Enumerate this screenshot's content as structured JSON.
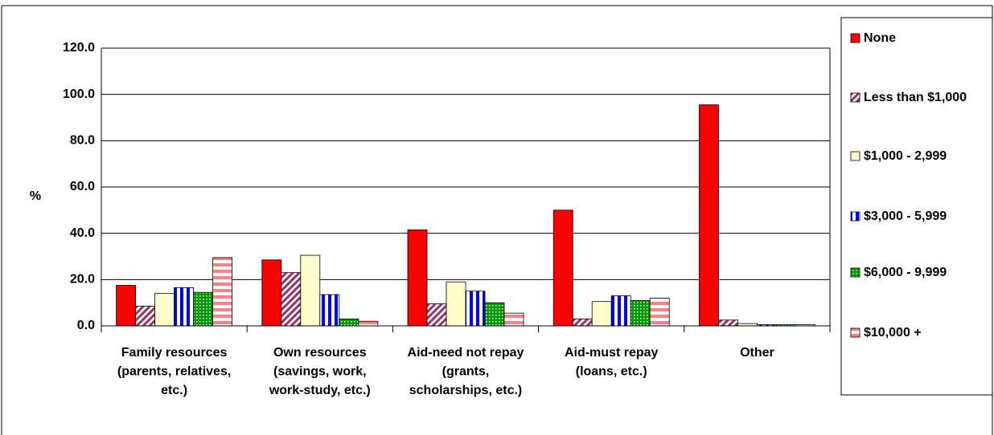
{
  "chart_data": {
    "type": "bar",
    "y_label": "%",
    "categories": [
      "Family resources (parents, relatives, etc.)",
      "Own resources (savings, work, work-study, etc.)",
      "Aid-need not repay (grants, scholarships, etc.)",
      "Aid-must repay (loans, etc.)",
      "Other"
    ],
    "series": [
      {
        "name": "None",
        "color": "#ff0000",
        "pattern": "solid",
        "values": [
          17.5,
          28.5,
          41.5,
          50,
          95.5
        ]
      },
      {
        "name": "Less than $1,000",
        "color": "#993366",
        "pattern": "diagonal",
        "values": [
          8.5,
          23,
          9.5,
          3,
          2.5
        ]
      },
      {
        "name": "$1,000 - 2,999",
        "color": "#ffffcc",
        "pattern": "solid",
        "values": [
          14,
          30.5,
          19,
          10.5,
          1
        ]
      },
      {
        "name": "$3,000 - 5,999",
        "color": "#0000ff",
        "pattern": "vertical",
        "values": [
          16.5,
          13.5,
          15,
          13,
          0.5
        ]
      },
      {
        "name": "$6,000 - 9,999",
        "color": "#009900",
        "pattern": "dots",
        "values": [
          14.5,
          3,
          10,
          11,
          0.5
        ]
      },
      {
        "name": "$10,000 +",
        "color": "#ff8080",
        "pattern": "horizontal",
        "values": [
          29.5,
          2,
          5.5,
          12,
          0.5
        ]
      }
    ],
    "ylim": [
      0,
      120
    ],
    "yticks": [
      {
        "value": 0,
        "label": "0.0"
      },
      {
        "value": 20,
        "label": "20.0"
      },
      {
        "value": 40,
        "label": "40.0"
      },
      {
        "value": 60,
        "label": "60.0"
      },
      {
        "value": 80,
        "label": "80.0"
      },
      {
        "value": 100,
        "label": "100.0"
      },
      {
        "value": 120,
        "label": "120.0"
      }
    ],
    "grid": true,
    "legend": "right"
  }
}
